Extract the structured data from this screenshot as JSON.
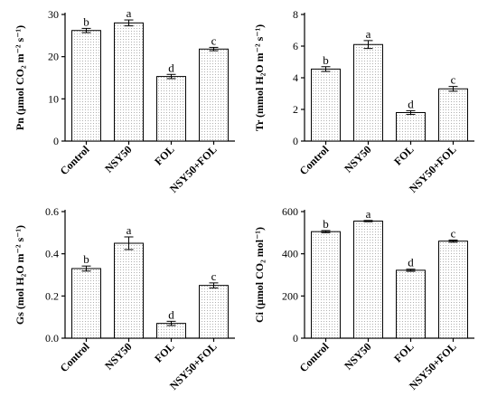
{
  "chart_data": [
    {
      "type": "bar",
      "ylabel": "Pn (μmol CO₂ m⁻² s⁻¹)",
      "categories": [
        "Control",
        "NSY50",
        "FOL",
        "NSY50+FOL"
      ],
      "values": [
        26.2,
        28.0,
        15.3,
        21.8
      ],
      "errors": [
        0.5,
        0.7,
        0.5,
        0.4
      ],
      "letters": [
        "b",
        "a",
        "d",
        "c"
      ],
      "ylim": [
        0,
        30
      ],
      "yticks": [
        "0",
        "10",
        "20",
        "30"
      ]
    },
    {
      "type": "bar",
      "ylabel": "Tr (mmol H₂O m⁻² s⁻¹)",
      "categories": [
        "Control",
        "NSY50",
        "FOL",
        "NSY50+FOL"
      ],
      "values": [
        4.55,
        6.1,
        1.8,
        3.3
      ],
      "errors": [
        0.15,
        0.25,
        0.12,
        0.15
      ],
      "letters": [
        "b",
        "a",
        "d",
        "c"
      ],
      "ylim": [
        0,
        8
      ],
      "yticks": [
        "0",
        "2",
        "4",
        "6",
        "8"
      ]
    },
    {
      "type": "bar",
      "ylabel": "Gs (mol H₂O m⁻² s⁻¹)",
      "categories": [
        "Control",
        "NSY50",
        "FOL",
        "NSY50+FOL"
      ],
      "values": [
        0.33,
        0.45,
        0.07,
        0.25
      ],
      "errors": [
        0.012,
        0.03,
        0.01,
        0.012
      ],
      "letters": [
        "b",
        "a",
        "d",
        "c"
      ],
      "ylim": [
        0,
        0.6
      ],
      "yticks": [
        "0.0",
        "0.2",
        "0.4",
        "0.6"
      ]
    },
    {
      "type": "bar",
      "ylabel": "Ci (μmol CO₂ mol⁻¹)",
      "categories": [
        "Control",
        "NSY50",
        "FOL",
        "NSY50+FOL"
      ],
      "values": [
        505,
        555,
        322,
        460
      ],
      "errors": [
        5,
        3,
        5,
        5
      ],
      "letters": [
        "b",
        "a",
        "d",
        "c"
      ],
      "ylim": [
        0,
        600
      ],
      "yticks": [
        "0",
        "200",
        "400",
        "600"
      ]
    }
  ]
}
